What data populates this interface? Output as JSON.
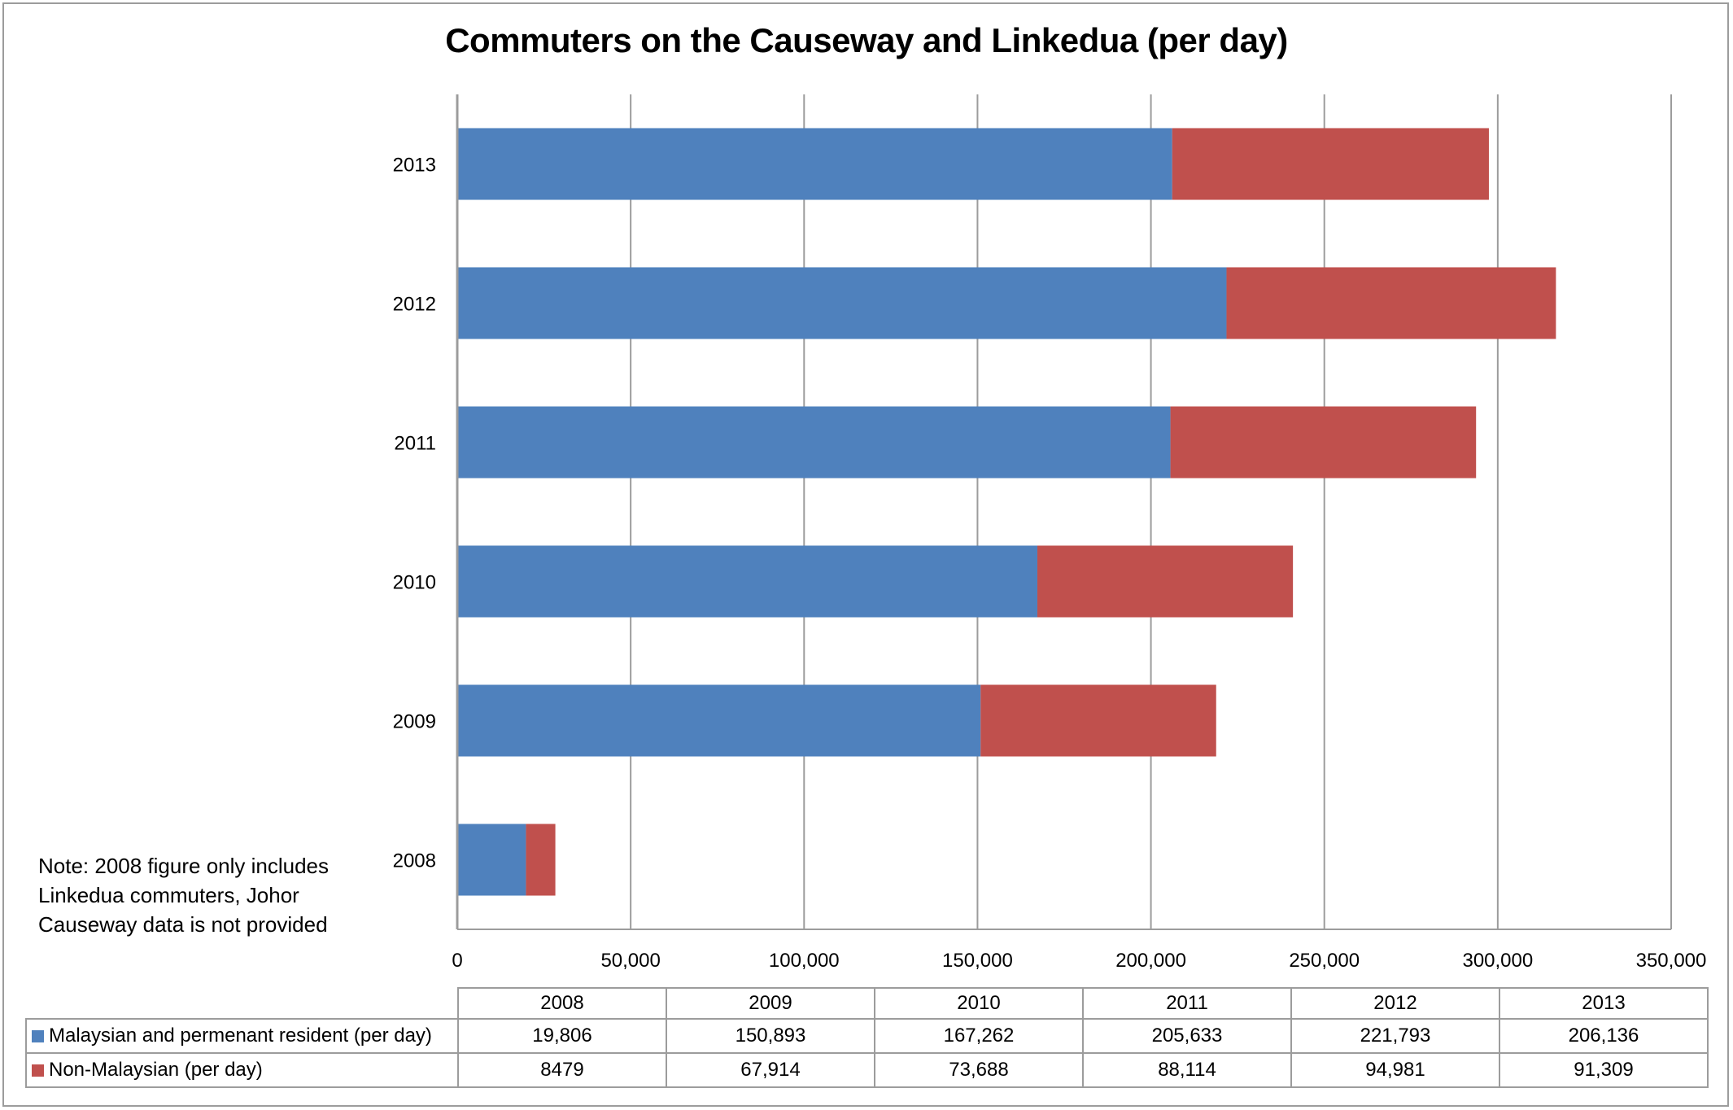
{
  "chart_data": {
    "type": "bar",
    "orientation": "horizontal",
    "stacked": true,
    "title": "Commuters on the Causeway and Linkedua (per day)",
    "xlabel": "",
    "ylabel": "",
    "categories": [
      "2008",
      "2009",
      "2010",
      "2011",
      "2012",
      "2013"
    ],
    "series": [
      {
        "name": "Malaysian and permenant resident (per day)",
        "color": "#4F81BD",
        "values": [
          19806,
          150893,
          167262,
          205633,
          221793,
          206136
        ],
        "labels": [
          "19,806",
          "150,893",
          "167,262",
          "205,633",
          "221,793",
          "206,136"
        ]
      },
      {
        "name": "Non-Malaysian (per day)",
        "color": "#C0504D",
        "values": [
          8479,
          67914,
          73688,
          88114,
          94981,
          91309
        ],
        "labels": [
          "8479",
          "67,914",
          "73,688",
          "88,114",
          "94,981",
          "91,309"
        ]
      }
    ],
    "xlim": [
      0,
      350000
    ],
    "x_ticks": [
      0,
      50000,
      100000,
      150000,
      200000,
      250000,
      300000,
      350000
    ],
    "x_tick_labels": [
      "0",
      "50,000",
      "100,000",
      "150,000",
      "200,000",
      "250,000",
      "300,000",
      "350,000"
    ],
    "grid": "vertical",
    "legend": "data-table-bottom",
    "data_table": true,
    "annotation": "Note: 2008 figure only includes Linkedua commuters, Johor Causeway data is not provided"
  },
  "note_lines": [
    "Note: 2008 figure only includes",
    "Linkedua commuters, Johor",
    "Causeway data is not provided"
  ],
  "colors": {
    "gridline": "#9C9C9C",
    "axis": "#9C9C9C"
  }
}
